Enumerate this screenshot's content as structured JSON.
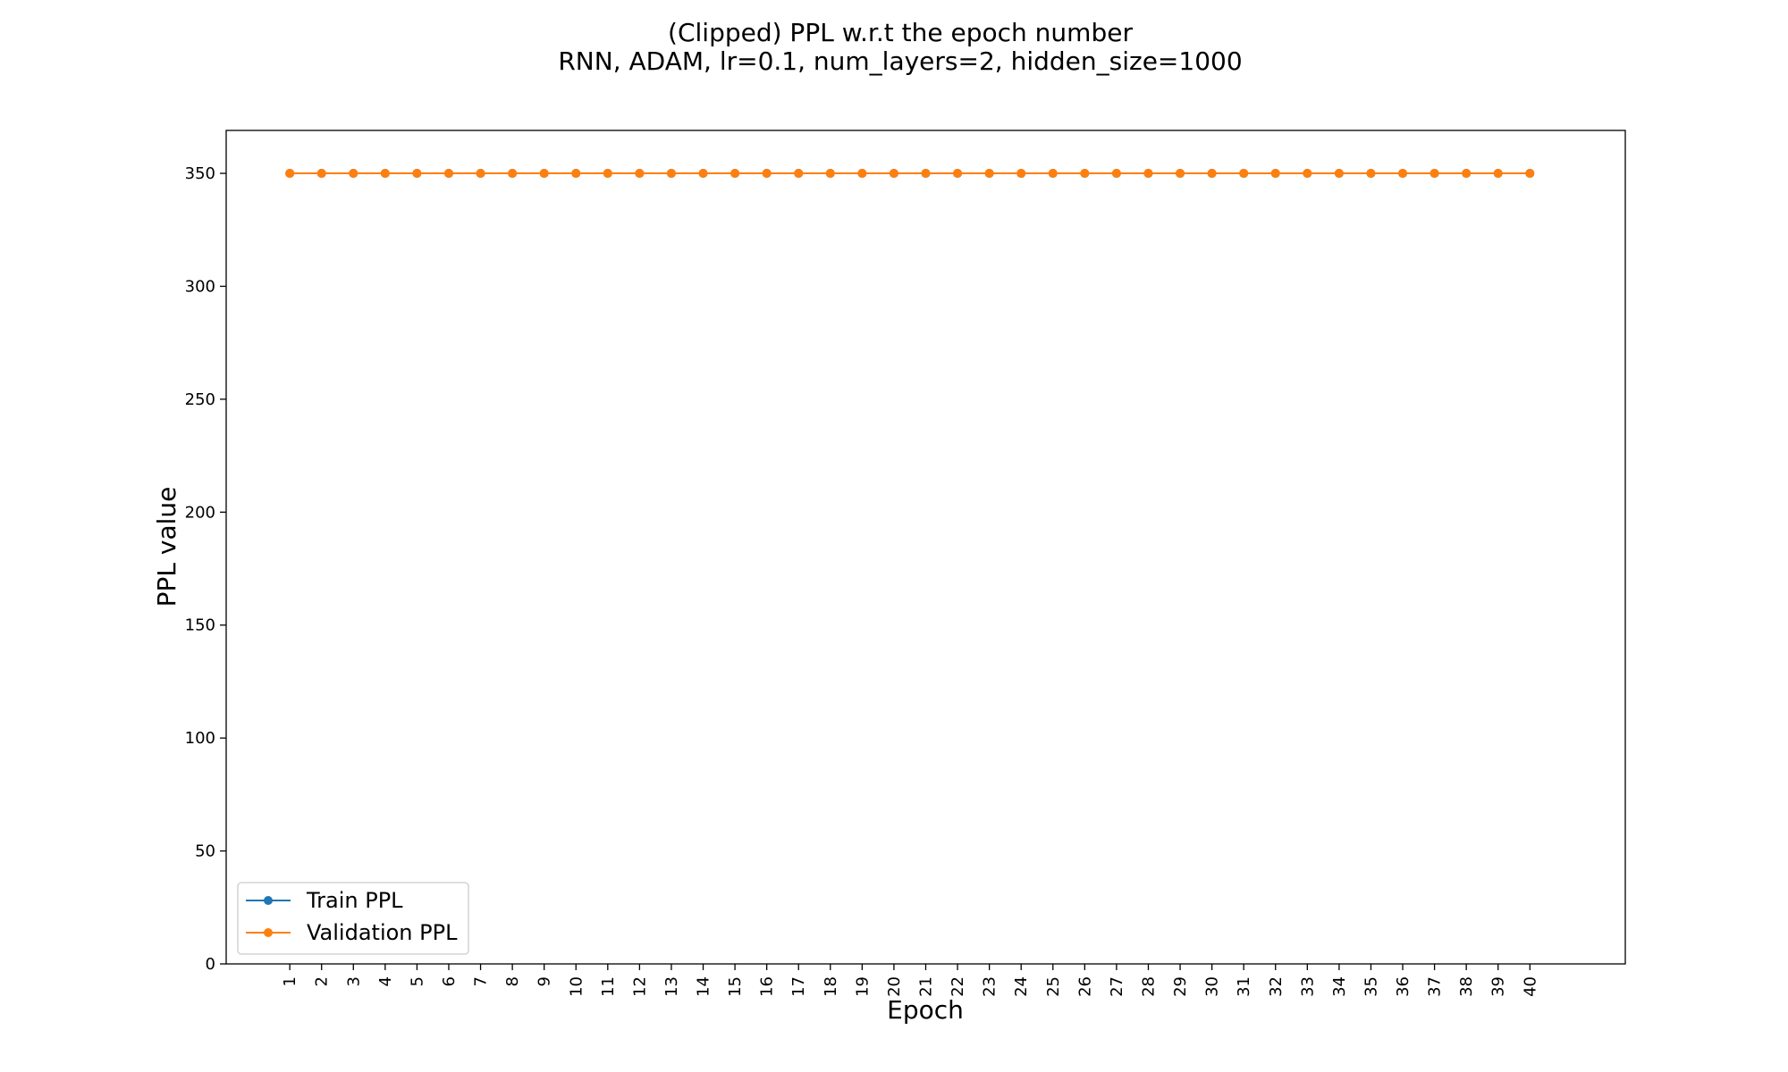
{
  "chart_data": {
    "type": "line",
    "title": "(Clipped) PPL w.r.t the epoch number",
    "subtitle": "RNN, ADAM, lr=0.1,  num_layers=2,  hidden_size=1000",
    "xlabel": "Epoch",
    "ylabel": "PPL value",
    "x": [
      1,
      2,
      3,
      4,
      5,
      6,
      7,
      8,
      9,
      10,
      11,
      12,
      13,
      14,
      15,
      16,
      17,
      18,
      19,
      20,
      21,
      22,
      23,
      24,
      25,
      26,
      27,
      28,
      29,
      30,
      31,
      32,
      33,
      34,
      35,
      36,
      37,
      38,
      39,
      40
    ],
    "xtick_labels": [
      "1",
      "2",
      "3",
      "4",
      "5",
      "6",
      "7",
      "8",
      "9",
      "10",
      "11",
      "12",
      "13",
      "14",
      "15",
      "16",
      "17",
      "18",
      "19",
      "20",
      "21",
      "22",
      "23",
      "24",
      "25",
      "26",
      "27",
      "28",
      "29",
      "30",
      "31",
      "32",
      "33",
      "34",
      "35",
      "36",
      "37",
      "38",
      "39",
      "40"
    ],
    "yticks": [
      0,
      50,
      100,
      150,
      200,
      250,
      300,
      350
    ],
    "ytick_labels": [
      "0",
      "50",
      "100",
      "150",
      "200",
      "250",
      "300",
      "350"
    ],
    "xlim": [
      -1,
      43
    ],
    "ylim": [
      0,
      369
    ],
    "grid": false,
    "legend_position": "lower-left",
    "series": [
      {
        "name": "Train PPL",
        "color": "#1f77b4",
        "marker": "circle",
        "values": [
          350,
          350,
          350,
          350,
          350,
          350,
          350,
          350,
          350,
          350,
          350,
          350,
          350,
          350,
          350,
          350,
          350,
          350,
          350,
          350,
          350,
          350,
          350,
          350,
          350,
          350,
          350,
          350,
          350,
          350,
          350,
          350,
          350,
          350,
          350,
          350,
          350,
          350,
          350,
          350
        ]
      },
      {
        "name": "Validation PPL",
        "color": "#ff7f0e",
        "marker": "circle",
        "values": [
          350,
          350,
          350,
          350,
          350,
          350,
          350,
          350,
          350,
          350,
          350,
          350,
          350,
          350,
          350,
          350,
          350,
          350,
          350,
          350,
          350,
          350,
          350,
          350,
          350,
          350,
          350,
          350,
          350,
          350,
          350,
          350,
          350,
          350,
          350,
          350,
          350,
          350,
          350,
          350
        ]
      }
    ]
  }
}
